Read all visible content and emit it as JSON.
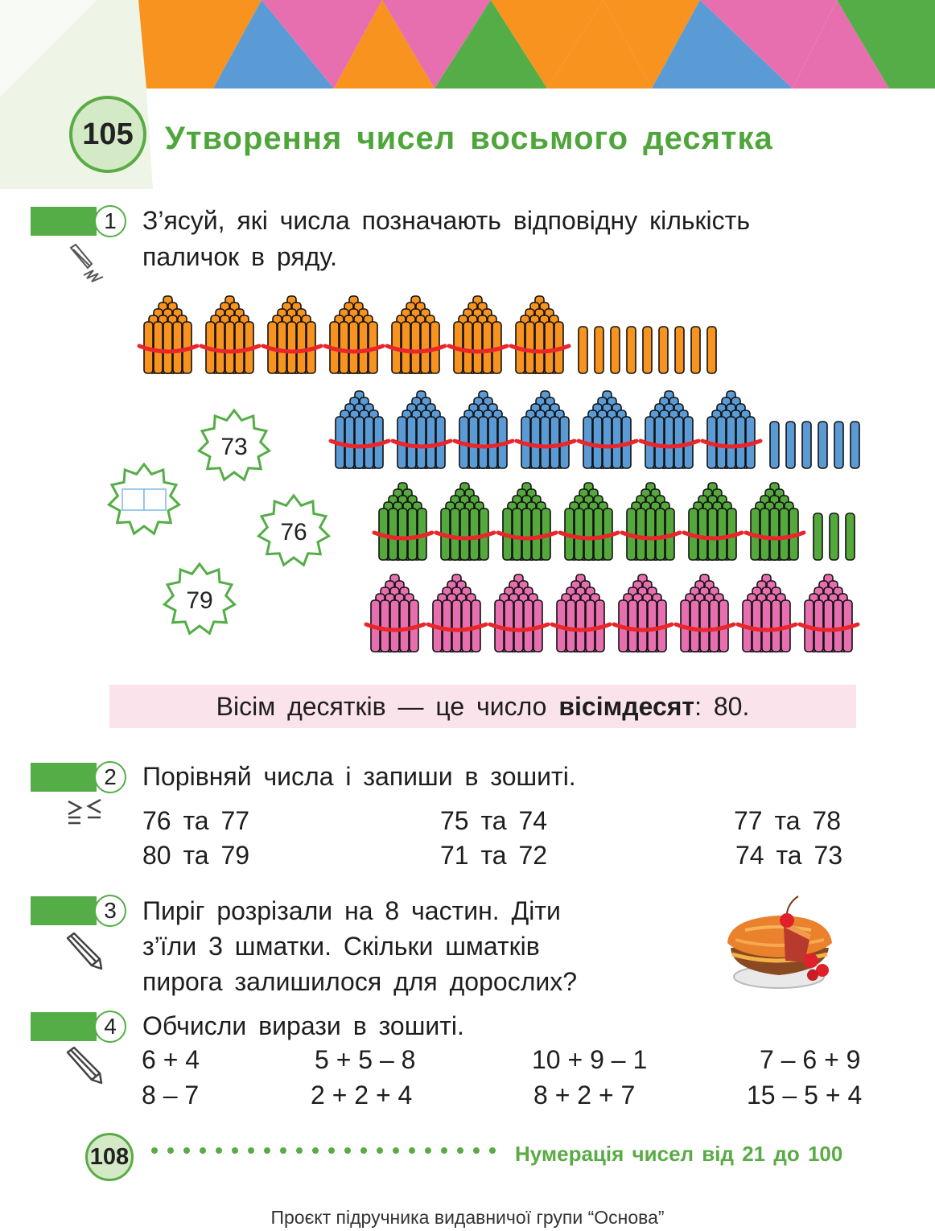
{
  "lesson": {
    "number": "105",
    "title": "Утворення чисел восьмого десятка"
  },
  "task1": {
    "number": "1",
    "text_line1": "З’ясуй, які числа позначають відповідну кількість",
    "text_line2": "паличок в ряду.",
    "icon": "pencil-scribble-icon",
    "stars": [
      "73",
      "",
      "76",
      "79"
    ],
    "stick_rows": [
      {
        "color": "#f7931e",
        "bundles": 7,
        "singles": 9
      },
      {
        "color": "#5b9bd5",
        "bundles": 7,
        "singles": 6
      },
      {
        "color": "#55a83c",
        "bundles": 7,
        "singles": 3
      },
      {
        "color": "#e76fb0",
        "bundles": 8,
        "singles": 0
      }
    ]
  },
  "rule": {
    "prefix": "Вісім десятків — це число ",
    "bold": "вісімдесят",
    "suffix": ": 80."
  },
  "task2": {
    "number": "2",
    "text": "Порівняй числа і запиши в зошиті.",
    "icon": "compare-signs-icon",
    "pairs": [
      "76 та 77",
      "75 та 74",
      "77 та 78",
      "80 та 79",
      "71 та 72",
      "74 та 73"
    ]
  },
  "task3": {
    "number": "3",
    "line1": "Пиріг розрізали на 8 частин. Діти",
    "line2": "з’їли 3 шматки. Скільки шматків",
    "line3": "пирога залишилося для дорослих?",
    "icon": "pencil-icon",
    "image": "pie-with-cherries"
  },
  "task4": {
    "number": "4",
    "text": "Обчисли вирази в зошиті.",
    "icon": "pencil-icon",
    "expressions": [
      "6 + 4",
      "5 + 5 – 8",
      "10 + 9 – 1",
      "7 – 6 + 9",
      "8 – 7",
      "2 + 2 + 4",
      "8 + 2 + 7",
      "15 – 5 + 4"
    ]
  },
  "footer": {
    "page_number": "108",
    "section": "Нумерація чисел від 21 до 100",
    "credit": "Проєкт підручника видавничої групи “Основа”"
  },
  "colors": {
    "green": "#55ad47",
    "orange": "#f7931e",
    "blue": "#5b9bd5",
    "pink": "#e76fb0",
    "rule_background": "#fbe3ec",
    "band_red": "#e8262b"
  }
}
